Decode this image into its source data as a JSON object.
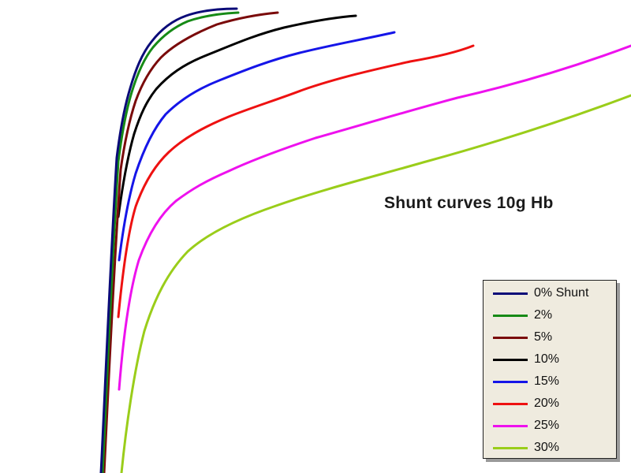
{
  "chart_data": {
    "type": "line",
    "title": "Shunt curves 10g Hb",
    "xlabel": "",
    "ylabel": "",
    "grid": false,
    "axes_shown": false,
    "legend_placement": "bottom-right",
    "series": [
      {
        "name": "0% Shunt",
        "color": "#0a0a78"
      },
      {
        "name": "2%",
        "color": "#168a16"
      },
      {
        "name": "5%",
        "color": "#7a0a0a"
      },
      {
        "name": "10%",
        "color": "#000000"
      },
      {
        "name": "15%",
        "color": "#1515e8"
      },
      {
        "name": "20%",
        "color": "#ee1111"
      },
      {
        "name": "25%",
        "color": "#ee11ee"
      },
      {
        "name": "30%",
        "color": "#9acd1a"
      }
    ]
  }
}
